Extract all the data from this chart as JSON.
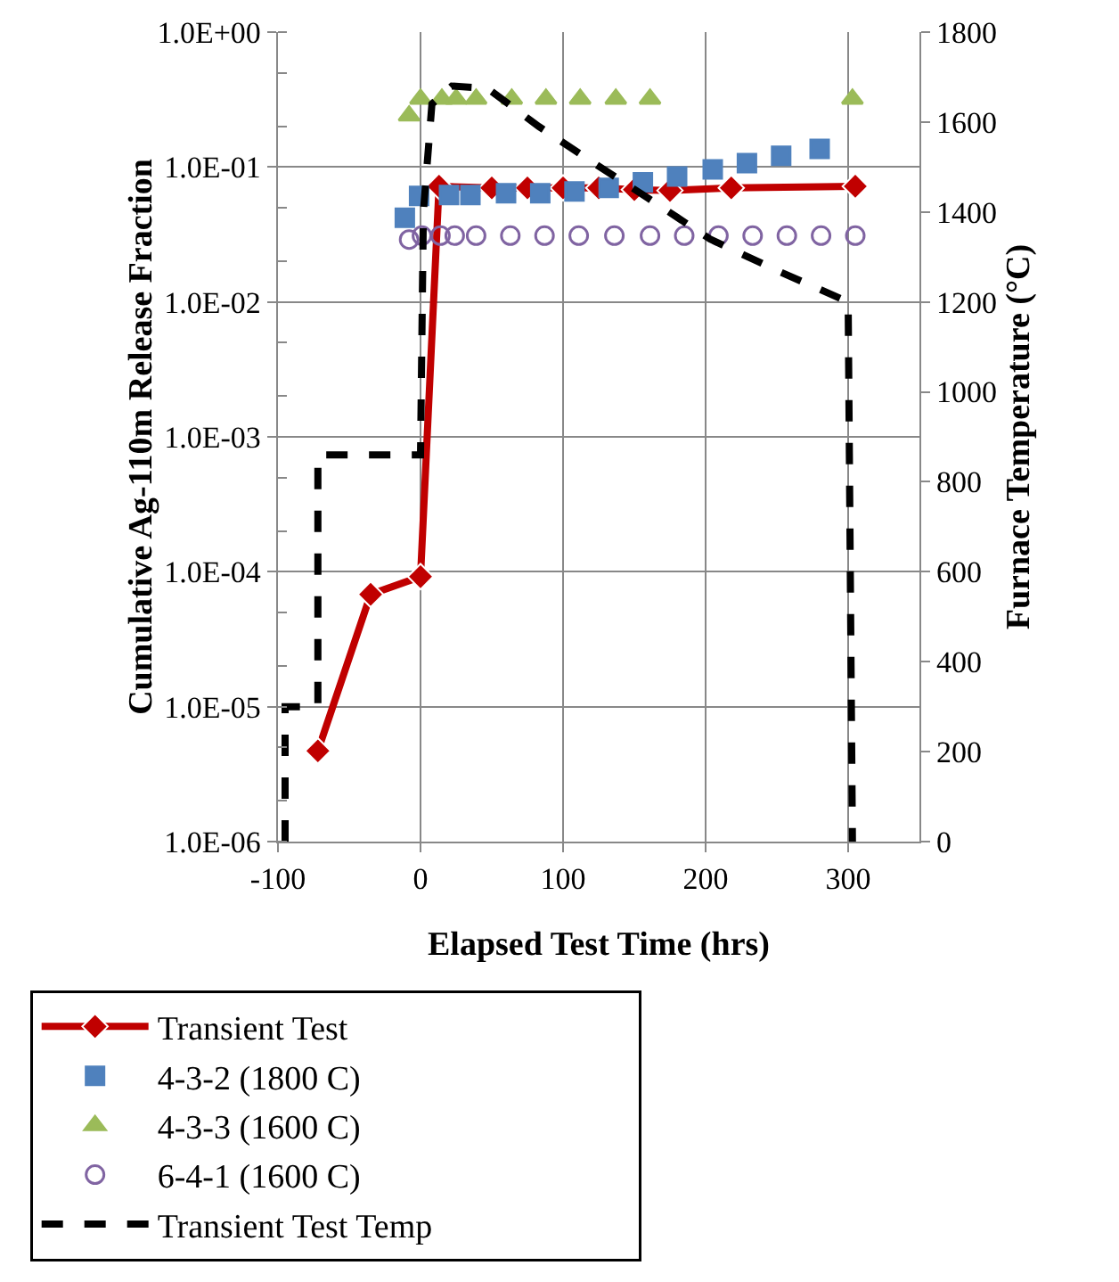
{
  "chart_data": {
    "type": "line",
    "xlabel": "Elapsed Test Time (hrs)",
    "ylabel": "Cumulative Ag-110m Release Fraction",
    "y2label": "Furnace Temperature (°C)",
    "xlim": [
      -100,
      350
    ],
    "xticks": [
      -100,
      0,
      100,
      200,
      300
    ],
    "ylim": [
      1e-06,
      1
    ],
    "yticks": [
      {
        "value": 1e-06,
        "label": "1.0E-06"
      },
      {
        "value": 1e-05,
        "label": "1.0E-05"
      },
      {
        "value": 0.0001,
        "label": "1.0E-04"
      },
      {
        "value": 0.001,
        "label": "1.0E-03"
      },
      {
        "value": 0.01,
        "label": "1.0E-02"
      },
      {
        "value": 0.1,
        "label": "1.0E-01"
      },
      {
        "value": 1,
        "label": "1.0E+00"
      }
    ],
    "y2lim": [
      0,
      1800
    ],
    "y2ticks": [
      0,
      200,
      400,
      600,
      800,
      1000,
      1200,
      1400,
      1600,
      1800
    ],
    "log": "y",
    "grid": true,
    "legend": "bottom",
    "series": [
      {
        "name": "Transient Test",
        "marker": "diamond",
        "line_style": "solid",
        "color": "#c00000",
        "x": [
          -72,
          -35,
          0,
          5,
          13,
          24,
          50,
          75,
          100,
          125,
          150,
          175,
          218,
          305
        ],
        "values": [
          4.7e-06,
          6.8e-05,
          9.2e-05,
          null,
          0.072,
          null,
          0.07,
          0.07,
          0.07,
          0.07,
          0.068,
          0.067,
          0.07,
          0.072
        ]
      },
      {
        "name": "4-3-2 (1800 C)",
        "type": "scatter",
        "marker": "square",
        "color": "#4f81bd",
        "x": [
          -11,
          -1,
          20,
          35,
          60,
          84,
          108,
          132,
          156,
          180,
          205,
          229,
          253,
          280
        ],
        "values": [
          0.042,
          0.061,
          0.062,
          0.062,
          0.064,
          0.064,
          0.066,
          0.07,
          0.077,
          0.085,
          0.096,
          0.107,
          0.121,
          0.136
        ]
      },
      {
        "name": "4-3-3 (1600 C)",
        "type": "scatter",
        "marker": "triangle",
        "color": "#9bbb59",
        "x": [
          -8,
          0,
          15,
          25,
          39,
          64,
          88,
          112,
          137,
          161,
          303
        ],
        "values": [
          0.24,
          0.32,
          0.32,
          0.32,
          0.32,
          0.32,
          0.32,
          0.32,
          0.32,
          0.32,
          0.32
        ]
      },
      {
        "name": "6-4-1 (1600 C)",
        "type": "scatter",
        "marker": "circle-open",
        "color": "#8064a2",
        "x": [
          -8,
          1,
          14,
          24,
          39,
          63,
          87,
          111,
          136,
          161,
          185,
          209,
          233,
          257,
          281,
          305
        ],
        "values": [
          0.029,
          0.031,
          0.031,
          0.031,
          0.031,
          0.031,
          0.031,
          0.031,
          0.031,
          0.031,
          0.031,
          0.031,
          0.031,
          0.031,
          0.031,
          0.031
        ]
      },
      {
        "name": "Transient Test Temp",
        "axis": "y2",
        "marker": "none",
        "line_style": "dashed",
        "color": "#000000",
        "x": [
          -95,
          -95,
          -72,
          -72,
          0,
          2,
          8,
          22,
          47,
          83,
          121,
          160,
          203,
          250,
          300,
          303
        ],
        "values": [
          0,
          300,
          300,
          860,
          860,
          1400,
          1640,
          1680,
          1675,
          1590,
          1510,
          1430,
          1340,
          1270,
          1200,
          0
        ]
      }
    ]
  }
}
